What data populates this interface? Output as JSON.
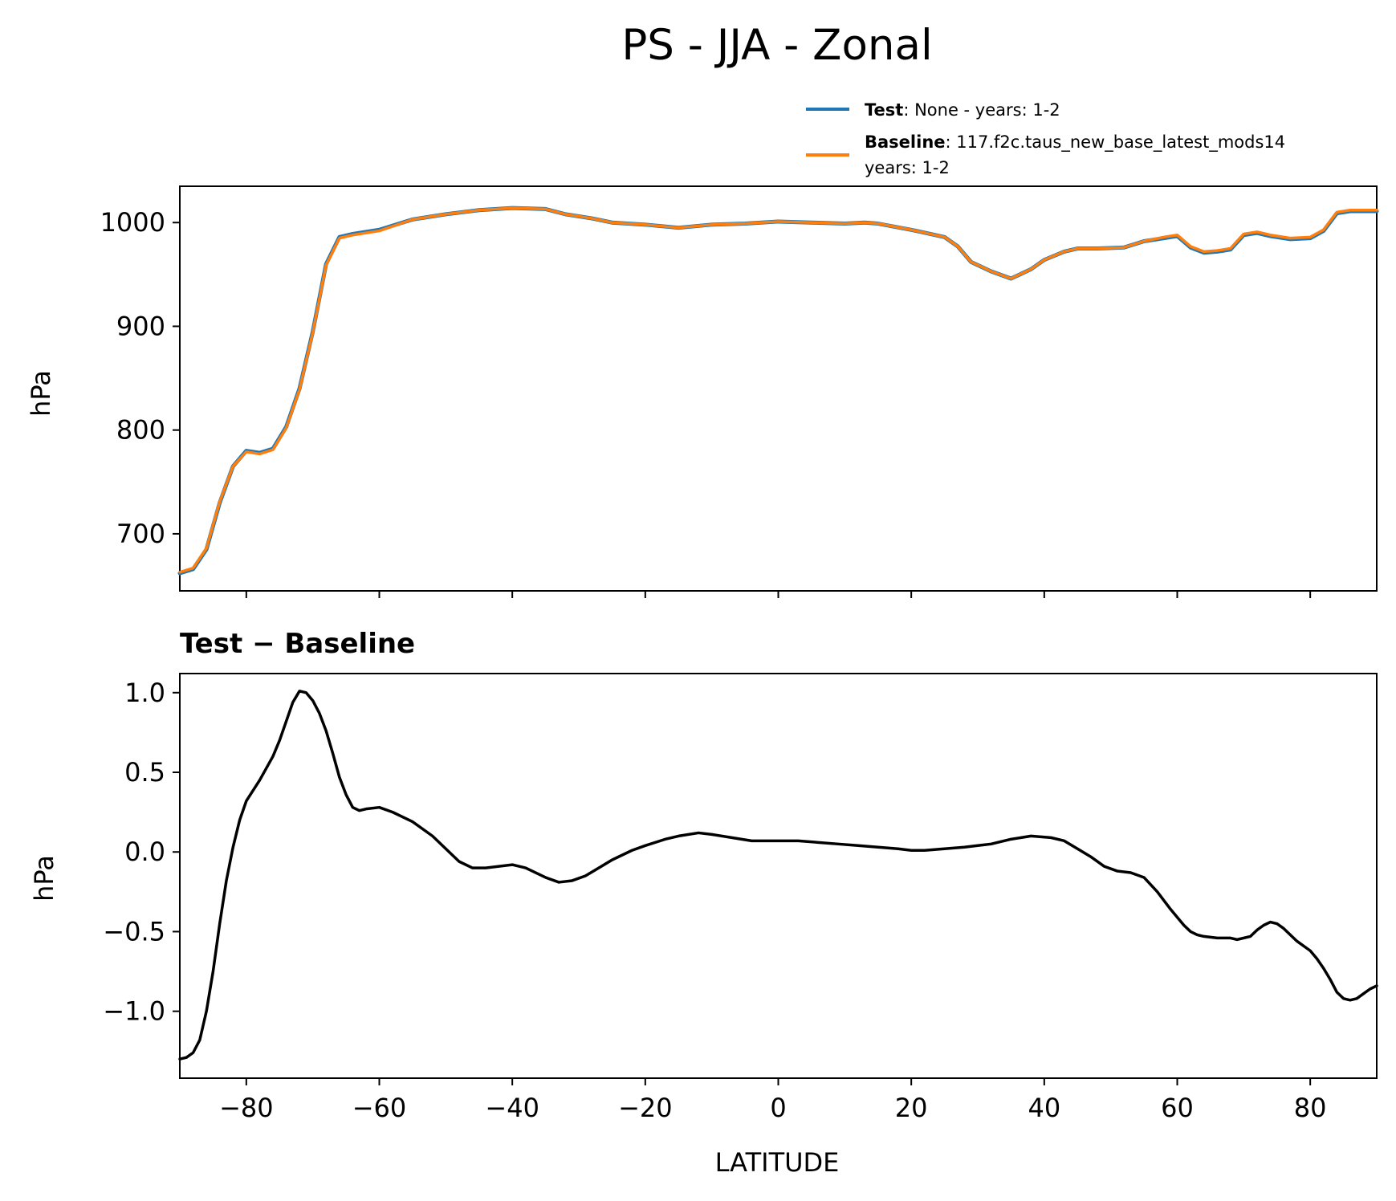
{
  "chart_data": [
    {
      "type": "line",
      "title": "PS - JJA - Zonal",
      "xlabel": "",
      "ylabel": "hPa",
      "xlim": [
        -90,
        90
      ],
      "ylim": [
        645,
        1035
      ],
      "yticks": [
        700,
        800,
        900,
        1000
      ],
      "yticklabels": [
        "700",
        "800",
        "900",
        "1000"
      ],
      "xticks": [
        -80,
        -60,
        -40,
        -20,
        0,
        20,
        40,
        60,
        80
      ],
      "legend": {
        "placement": "top-right",
        "entries": [
          {
            "name_bold": "Test",
            "text": ": None - years: 1-2",
            "text2": "",
            "color": "#1f77b4"
          },
          {
            "name_bold": "Baseline",
            "text": ": 117.f2c.taus_new_base_latest_mods14",
            "text2": "years: 1-2",
            "color": "#ff7f0e"
          }
        ]
      },
      "x": [
        -90,
        -88,
        -86,
        -84,
        -82,
        -80,
        -78,
        -76,
        -74,
        -72,
        -70,
        -68,
        -66,
        -64,
        -60,
        -55,
        -50,
        -45,
        -40,
        -35,
        -32,
        -28,
        -25,
        -20,
        -15,
        -10,
        -5,
        0,
        5,
        10,
        13,
        15,
        20,
        25,
        27,
        29,
        32,
        35,
        38,
        40,
        43,
        45,
        48,
        52,
        55,
        58,
        60,
        62,
        64,
        66,
        68,
        70,
        72,
        74,
        77,
        80,
        82,
        84,
        86,
        88,
        90
      ],
      "series": [
        {
          "name": "Test",
          "color": "#1f77b4",
          "values": [
            662,
            666,
            685,
            730,
            765,
            780,
            778,
            782,
            803,
            840,
            895,
            960,
            986,
            989,
            993,
            1003,
            1008,
            1012,
            1014,
            1013,
            1008,
            1004,
            1000,
            998,
            995,
            998,
            999,
            1001,
            1000,
            999,
            1000,
            999,
            993,
            986,
            977,
            962,
            953,
            946,
            955,
            964,
            972,
            975,
            975,
            976,
            982,
            985,
            987,
            976,
            971,
            972,
            974,
            988,
            990,
            987,
            984,
            985,
            992,
            1009,
            1011,
            1011,
            1011
          ]
        },
        {
          "name": "Baseline",
          "color": "#ff7f0e",
          "values": [
            663,
            667,
            686,
            731,
            765,
            779,
            777,
            781,
            802,
            839,
            894,
            959,
            985,
            988,
            992,
            1003,
            1008,
            1012,
            1014,
            1013,
            1008,
            1004,
            1000,
            998,
            995,
            998,
            999,
            1001,
            1000,
            999,
            1000,
            999,
            993,
            986,
            977,
            962,
            953,
            946,
            955,
            964,
            972,
            975,
            975,
            976,
            982,
            986,
            988,
            977,
            972,
            973,
            975,
            989,
            991,
            988,
            985,
            986,
            993,
            1010,
            1012,
            1012,
            1012
          ]
        }
      ]
    },
    {
      "type": "line",
      "title": "Test − Baseline",
      "xlabel": "LATITUDE",
      "ylabel": "hPa",
      "xlim": [
        -90,
        90
      ],
      "ylim": [
        -1.42,
        1.12
      ],
      "yticks": [
        -1.0,
        -0.5,
        0.0,
        0.5,
        1.0
      ],
      "yticklabels": [
        "−1.0",
        "−0.5",
        "0.0",
        "0.5",
        "1.0"
      ],
      "xticks": [
        -80,
        -60,
        -40,
        -20,
        0,
        20,
        40,
        60,
        80
      ],
      "xticklabels": [
        "−80",
        "−60",
        "−40",
        "−20",
        "0",
        "20",
        "40",
        "60",
        "80"
      ],
      "x": [
        -90,
        -89,
        -88,
        -87,
        -86,
        -85,
        -84,
        -83,
        -82,
        -81,
        -80,
        -78,
        -76,
        -75,
        -74,
        -73,
        -72,
        -71,
        -70,
        -69,
        -68,
        -67,
        -66,
        -65,
        -64,
        -63,
        -62,
        -60,
        -58,
        -55,
        -52,
        -50,
        -48,
        -46,
        -44,
        -40,
        -38,
        -35,
        -33,
        -31,
        -29,
        -27,
        -25,
        -22,
        -20,
        -17,
        -15,
        -12,
        -10,
        -7,
        -4,
        0,
        3,
        6,
        9,
        12,
        15,
        18,
        20,
        22,
        25,
        28,
        30,
        32,
        35,
        38,
        41,
        43,
        45,
        47,
        49,
        51,
        53,
        55,
        57,
        59,
        61,
        62,
        63,
        64,
        66,
        68,
        69,
        71,
        72,
        73,
        74,
        75,
        76,
        78,
        80,
        81,
        82,
        83,
        84,
        85,
        86,
        87,
        88,
        89,
        90
      ],
      "series": [
        {
          "name": "Test − Baseline",
          "color": "#000000",
          "values": [
            -1.3,
            -1.29,
            -1.26,
            -1.18,
            -1.0,
            -0.75,
            -0.45,
            -0.18,
            0.03,
            0.2,
            0.32,
            0.45,
            0.6,
            0.7,
            0.82,
            0.94,
            1.01,
            1.0,
            0.95,
            0.87,
            0.76,
            0.62,
            0.47,
            0.36,
            0.28,
            0.26,
            0.27,
            0.28,
            0.25,
            0.19,
            0.1,
            0.02,
            -0.06,
            -0.1,
            -0.1,
            -0.08,
            -0.1,
            -0.16,
            -0.19,
            -0.18,
            -0.15,
            -0.1,
            -0.05,
            0.01,
            0.04,
            0.08,
            0.1,
            0.12,
            0.11,
            0.09,
            0.07,
            0.07,
            0.07,
            0.06,
            0.05,
            0.04,
            0.03,
            0.02,
            0.01,
            0.01,
            0.02,
            0.03,
            0.04,
            0.05,
            0.08,
            0.1,
            0.09,
            0.07,
            0.02,
            -0.03,
            -0.09,
            -0.12,
            -0.13,
            -0.16,
            -0.25,
            -0.36,
            -0.46,
            -0.5,
            -0.52,
            -0.53,
            -0.54,
            -0.54,
            -0.55,
            -0.53,
            -0.49,
            -0.46,
            -0.44,
            -0.45,
            -0.48,
            -0.56,
            -0.62,
            -0.67,
            -0.73,
            -0.8,
            -0.88,
            -0.92,
            -0.93,
            -0.92,
            -0.89,
            -0.86,
            -0.84
          ]
        }
      ]
    }
  ]
}
